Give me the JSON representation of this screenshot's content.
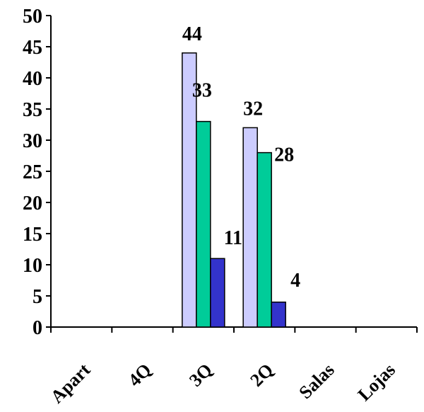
{
  "chart_data": {
    "type": "bar",
    "title": "",
    "xlabel": "",
    "ylabel": "",
    "ylim": [
      0,
      50
    ],
    "y_ticks": [
      0,
      5,
      10,
      15,
      20,
      25,
      30,
      35,
      40,
      45,
      50
    ],
    "grid": false,
    "legend": "none",
    "categories": [
      "Apart",
      "4Q",
      "3Q",
      "2Q",
      "Salas",
      "Lojas"
    ],
    "series": [
      {
        "color": "#ccccff",
        "values": [
          null,
          null,
          44,
          32,
          null,
          null
        ]
      },
      {
        "color": "#00cc99",
        "values": [
          null,
          null,
          33,
          28,
          null,
          null
        ]
      },
      {
        "color": "#3333cc",
        "values": [
          null,
          null,
          11,
          4,
          null,
          null
        ]
      }
    ],
    "data_labels": true
  }
}
